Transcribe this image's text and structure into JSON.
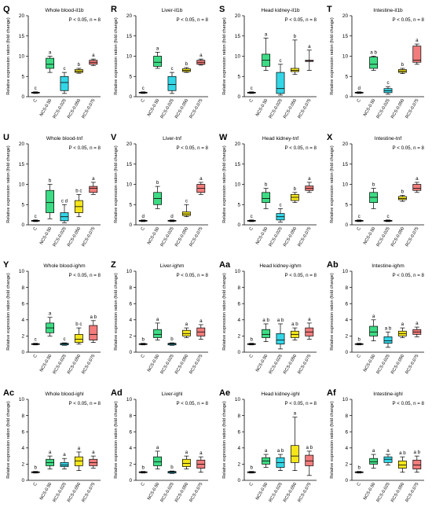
{
  "colors": {
    "C": "#ffffff",
    "NCS": "#3ddc84",
    "RCS25": "#33d6e6",
    "RCS50": "#f5e61c",
    "RCS75": "#f27c7c",
    "stroke": "#000000"
  },
  "common": {
    "ylabel": "Relative expression ration (fold change)",
    "stat": "P < 0.05, n = 8",
    "groups": [
      "C",
      "NCS-0.50",
      "RCS-0.025",
      "RCS-0.050",
      "RCS-0.075"
    ]
  },
  "chart_data": [
    {
      "type": "box",
      "panel": "Q",
      "title": "Whole blood-il1b",
      "ylim": [
        0,
        20
      ],
      "yticks": [
        0,
        5,
        10,
        15,
        20
      ],
      "boxes": [
        {
          "q1": 0.9,
          "q3": 1.1,
          "median": 1,
          "min": 0.8,
          "max": 1.2,
          "letter": "c"
        },
        {
          "q1": 7,
          "q3": 9.5,
          "median": 8,
          "min": 6,
          "max": 10,
          "letter": "a"
        },
        {
          "q1": 1.5,
          "q3": 5,
          "median": 3.5,
          "min": 0.8,
          "max": 6,
          "letter": "c"
        },
        {
          "q1": 6,
          "q3": 6.7,
          "median": 6.3,
          "min": 5.8,
          "max": 7,
          "letter": "b"
        },
        {
          "q1": 8,
          "q3": 9,
          "median": 8.5,
          "min": 7.7,
          "max": 9.3,
          "letter": "a"
        }
      ]
    },
    {
      "type": "box",
      "panel": "R",
      "title": "Liver-il1b",
      "ylim": [
        0,
        20
      ],
      "yticks": [
        0,
        5,
        10,
        15,
        20
      ],
      "boxes": [
        {
          "q1": 0.9,
          "q3": 1.1,
          "median": 1,
          "min": 0.8,
          "max": 1.2,
          "letter": "c"
        },
        {
          "q1": 7.5,
          "q3": 10,
          "median": 8.5,
          "min": 7,
          "max": 11,
          "letter": "a"
        },
        {
          "q1": 1.5,
          "q3": 5,
          "median": 3,
          "min": 0.8,
          "max": 6,
          "letter": "c"
        },
        {
          "q1": 6.2,
          "q3": 6.9,
          "median": 6.5,
          "min": 6,
          "max": 7.2,
          "letter": "b"
        },
        {
          "q1": 8,
          "q3": 9,
          "median": 8.5,
          "min": 7.8,
          "max": 9.3,
          "letter": "a"
        }
      ]
    },
    {
      "type": "box",
      "panel": "S",
      "title": "Head kidney-il1b",
      "ylim": [
        0,
        20
      ],
      "yticks": [
        0,
        5,
        10,
        15,
        20
      ],
      "boxes": [
        {
          "q1": 0.9,
          "q3": 1.1,
          "median": 1,
          "min": 0.8,
          "max": 1.2,
          "letter": "c"
        },
        {
          "q1": 7.5,
          "q3": 10.5,
          "median": 9,
          "min": 6.5,
          "max": 14.5,
          "letter": "a"
        },
        {
          "q1": 0.8,
          "q3": 6,
          "median": 2,
          "min": 0.4,
          "max": 8,
          "letter": "c"
        },
        {
          "q1": 6.2,
          "q3": 7,
          "median": 6.5,
          "min": 5.5,
          "max": 14,
          "letter": "b"
        },
        {
          "q1": 8.7,
          "q3": 9,
          "median": 8.8,
          "min": 6.5,
          "max": 11.5,
          "letter": "a"
        }
      ]
    },
    {
      "type": "box",
      "panel": "T",
      "title": "Intestine-il1b",
      "ylim": [
        0,
        20
      ],
      "yticks": [
        0,
        5,
        10,
        15,
        20
      ],
      "boxes": [
        {
          "q1": 0.9,
          "q3": 1.1,
          "median": 1,
          "min": 0.8,
          "max": 1.2,
          "letter": "d"
        },
        {
          "q1": 7,
          "q3": 9.8,
          "median": 8,
          "min": 6.5,
          "max": 10,
          "letter": "a b"
        },
        {
          "q1": 1,
          "q3": 2,
          "median": 1.5,
          "min": 0.6,
          "max": 2.5,
          "letter": "c"
        },
        {
          "q1": 6,
          "q3": 6.7,
          "median": 6.3,
          "min": 5.7,
          "max": 7,
          "letter": "b"
        },
        {
          "q1": 8.5,
          "q3": 12.5,
          "median": 9,
          "min": 8,
          "max": 13,
          "letter": "a"
        }
      ]
    },
    {
      "type": "box",
      "panel": "U",
      "title": "Whole blood-tnf",
      "ylim": [
        0,
        20
      ],
      "yticks": [
        0,
        5,
        10,
        15,
        20
      ],
      "boxes": [
        {
          "q1": 0.9,
          "q3": 1.1,
          "median": 1,
          "min": 0.8,
          "max": 1.2,
          "letter": "c"
        },
        {
          "q1": 3,
          "q3": 8.5,
          "median": 5.5,
          "min": 1.5,
          "max": 10,
          "letter": "b"
        },
        {
          "q1": 1,
          "q3": 3,
          "median": 2,
          "min": 0.5,
          "max": 5,
          "letter": "c d"
        },
        {
          "q1": 3,
          "q3": 6,
          "median": 4.5,
          "min": 2,
          "max": 7.5,
          "letter": "b c"
        },
        {
          "q1": 8,
          "q3": 9.5,
          "median": 9,
          "min": 7.5,
          "max": 10.5,
          "letter": "a"
        }
      ]
    },
    {
      "type": "box",
      "panel": "V",
      "title": "Liver-tnf",
      "ylim": [
        0,
        20
      ],
      "yticks": [
        0,
        5,
        10,
        15,
        20
      ],
      "boxes": [
        {
          "q1": 0.9,
          "q3": 1.1,
          "median": 1,
          "min": 0.8,
          "max": 1.2,
          "letter": "d"
        },
        {
          "q1": 5,
          "q3": 8,
          "median": 6.5,
          "min": 4,
          "max": 9.5,
          "letter": "b"
        },
        {
          "q1": 0.9,
          "q3": 1.1,
          "median": 1,
          "min": 0.8,
          "max": 1.2,
          "letter": "d"
        },
        {
          "q1": 2.3,
          "q3": 3.2,
          "median": 2.7,
          "min": 2,
          "max": 5,
          "letter": "c"
        },
        {
          "q1": 8,
          "q3": 10,
          "median": 9,
          "min": 7.5,
          "max": 10.5,
          "letter": "a"
        }
      ]
    },
    {
      "type": "box",
      "panel": "W",
      "title": "Head kidney-tnf",
      "ylim": [
        0,
        20
      ],
      "yticks": [
        0,
        5,
        10,
        15,
        20
      ],
      "boxes": [
        {
          "q1": 0.9,
          "q3": 1.1,
          "median": 1,
          "min": 0.8,
          "max": 1.2,
          "letter": "c"
        },
        {
          "q1": 5.5,
          "q3": 8,
          "median": 6.5,
          "min": 4,
          "max": 9,
          "letter": "b"
        },
        {
          "q1": 1.2,
          "q3": 2.8,
          "median": 2,
          "min": 0.7,
          "max": 4,
          "letter": "c"
        },
        {
          "q1": 6,
          "q3": 7.5,
          "median": 6.8,
          "min": 5.5,
          "max": 8,
          "letter": "b"
        },
        {
          "q1": 8.5,
          "q3": 9.6,
          "median": 9,
          "min": 8,
          "max": 10.5,
          "letter": "a"
        }
      ]
    },
    {
      "type": "box",
      "panel": "X",
      "title": "Intestine-tnf",
      "ylim": [
        0,
        20
      ],
      "yticks": [
        0,
        5,
        10,
        15,
        20
      ],
      "boxes": [
        {
          "q1": 0.9,
          "q3": 1.1,
          "median": 1,
          "min": 0.8,
          "max": 1.2,
          "letter": "c"
        },
        {
          "q1": 5.5,
          "q3": 8,
          "median": 6.8,
          "min": 4,
          "max": 9,
          "letter": "b"
        },
        {
          "q1": 0.9,
          "q3": 1.1,
          "median": 1,
          "min": 0.8,
          "max": 1.2,
          "letter": "c"
        },
        {
          "q1": 6.2,
          "q3": 7,
          "median": 6.5,
          "min": 5.8,
          "max": 7.3,
          "letter": "b"
        },
        {
          "q1": 8.5,
          "q3": 10,
          "median": 9,
          "min": 8,
          "max": 10.5,
          "letter": "a"
        }
      ]
    },
    {
      "type": "box",
      "panel": "Y",
      "title": "Whole blood-ighm",
      "ylim": [
        0,
        10
      ],
      "yticks": [
        0,
        2,
        4,
        6,
        8,
        10
      ],
      "boxes": [
        {
          "q1": 0.95,
          "q3": 1.05,
          "median": 1,
          "min": 0.9,
          "max": 1.1,
          "letter": "c"
        },
        {
          "q1": 2.4,
          "q3": 3.6,
          "median": 3,
          "min": 2,
          "max": 4.3,
          "letter": "a"
        },
        {
          "q1": 0.9,
          "q3": 1.1,
          "median": 1,
          "min": 0.85,
          "max": 1.15,
          "letter": "c"
        },
        {
          "q1": 1.2,
          "q3": 2.2,
          "median": 1.6,
          "min": 1,
          "max": 3,
          "letter": "b c"
        },
        {
          "q1": 1.5,
          "q3": 3.3,
          "median": 2.2,
          "min": 1.2,
          "max": 3.9,
          "letter": "a b"
        }
      ]
    },
    {
      "type": "box",
      "panel": "Z",
      "title": "Liver-ighm",
      "ylim": [
        0,
        10
      ],
      "yticks": [
        0,
        2,
        4,
        6,
        8,
        10
      ],
      "boxes": [
        {
          "q1": 0.95,
          "q3": 1.05,
          "median": 1,
          "min": 0.9,
          "max": 1.1,
          "letter": "b"
        },
        {
          "q1": 1.8,
          "q3": 2.8,
          "median": 2.2,
          "min": 1.5,
          "max": 3.6,
          "letter": "a"
        },
        {
          "q1": 0.9,
          "q3": 1.1,
          "median": 1,
          "min": 0.85,
          "max": 1.15,
          "letter": "b"
        },
        {
          "q1": 2,
          "q3": 2.7,
          "median": 2.3,
          "min": 1.8,
          "max": 3,
          "letter": "a"
        },
        {
          "q1": 2,
          "q3": 3,
          "median": 2.5,
          "min": 1.6,
          "max": 3.4,
          "letter": "a"
        }
      ]
    },
    {
      "type": "box",
      "panel": "Aa",
      "title": "Head kidney-ighm",
      "ylim": [
        0,
        10
      ],
      "yticks": [
        0,
        2,
        4,
        6,
        8,
        10
      ],
      "boxes": [
        {
          "q1": 0.95,
          "q3": 1.05,
          "median": 1,
          "min": 0.9,
          "max": 1.1,
          "letter": "b"
        },
        {
          "q1": 1.8,
          "q3": 2.8,
          "median": 2.2,
          "min": 1.3,
          "max": 3.5,
          "letter": "a b"
        },
        {
          "q1": 1,
          "q3": 2.3,
          "median": 1.5,
          "min": 0.4,
          "max": 3.5,
          "letter": "a b"
        },
        {
          "q1": 1.8,
          "q3": 2.6,
          "median": 2.2,
          "min": 1.5,
          "max": 3,
          "letter": "a b"
        },
        {
          "q1": 2,
          "q3": 3,
          "median": 2.5,
          "min": 1.6,
          "max": 3.6,
          "letter": "a"
        }
      ]
    },
    {
      "type": "box",
      "panel": "Ab",
      "title": "Intestine-ighm",
      "ylim": [
        0,
        10
      ],
      "yticks": [
        0,
        2,
        4,
        6,
        8,
        10
      ],
      "boxes": [
        {
          "q1": 0.95,
          "q3": 1.05,
          "median": 1,
          "min": 0.9,
          "max": 1.1,
          "letter": "b"
        },
        {
          "q1": 2,
          "q3": 3.2,
          "median": 2.5,
          "min": 1.4,
          "max": 4,
          "letter": "a"
        },
        {
          "q1": 1.1,
          "q3": 1.9,
          "median": 1.4,
          "min": 0.6,
          "max": 2.5,
          "letter": "a b"
        },
        {
          "q1": 2,
          "q3": 2.6,
          "median": 2.3,
          "min": 1.8,
          "max": 3,
          "letter": "a"
        },
        {
          "q1": 2.2,
          "q3": 2.8,
          "median": 2.5,
          "min": 1.9,
          "max": 3.1,
          "letter": "a"
        }
      ]
    },
    {
      "type": "box",
      "panel": "Ac",
      "title": "Whole blood-ighl",
      "ylim": [
        0,
        10
      ],
      "yticks": [
        0,
        2,
        4,
        6,
        8,
        10
      ],
      "boxes": [
        {
          "q1": 0.95,
          "q3": 1.05,
          "median": 1,
          "min": 0.9,
          "max": 1.1,
          "letter": "b"
        },
        {
          "q1": 1.8,
          "q3": 2.6,
          "median": 2.2,
          "min": 1.4,
          "max": 3,
          "letter": "a"
        },
        {
          "q1": 1.7,
          "q3": 2.2,
          "median": 1.9,
          "min": 1.4,
          "max": 2.7,
          "letter": "a"
        },
        {
          "q1": 1.8,
          "q3": 2.9,
          "median": 2.4,
          "min": 1.2,
          "max": 3.5,
          "letter": "a"
        },
        {
          "q1": 1.8,
          "q3": 2.6,
          "median": 2.2,
          "min": 1.5,
          "max": 3,
          "letter": "a"
        }
      ]
    },
    {
      "type": "box",
      "panel": "Ad",
      "title": "Liver-ighl",
      "ylim": [
        0,
        10
      ],
      "yticks": [
        0,
        2,
        4,
        6,
        8,
        10
      ],
      "boxes": [
        {
          "q1": 0.95,
          "q3": 1.05,
          "median": 1,
          "min": 0.9,
          "max": 1.1,
          "letter": "b"
        },
        {
          "q1": 1.8,
          "q3": 2.9,
          "median": 2.3,
          "min": 1.4,
          "max": 3.6,
          "letter": "a"
        },
        {
          "q1": 0.9,
          "q3": 1.1,
          "median": 1,
          "min": 0.85,
          "max": 1.15,
          "letter": "b"
        },
        {
          "q1": 1.7,
          "q3": 2.6,
          "median": 2.1,
          "min": 1.4,
          "max": 3,
          "letter": "a"
        },
        {
          "q1": 1.5,
          "q3": 2.5,
          "median": 2,
          "min": 1,
          "max": 2.9,
          "letter": "a"
        }
      ]
    },
    {
      "type": "box",
      "panel": "Ae",
      "title": "Head kidney-ighl",
      "ylim": [
        0,
        10
      ],
      "yticks": [
        0,
        2,
        4,
        6,
        8,
        10
      ],
      "boxes": [
        {
          "q1": 0.95,
          "q3": 1.05,
          "median": 1,
          "min": 0.9,
          "max": 1.1,
          "letter": "b"
        },
        {
          "q1": 2,
          "q3": 2.8,
          "median": 2.4,
          "min": 1.6,
          "max": 3.2,
          "letter": "a"
        },
        {
          "q1": 1.6,
          "q3": 2.8,
          "median": 2.2,
          "min": 1.2,
          "max": 3.2,
          "letter": "a b"
        },
        {
          "q1": 2.2,
          "q3": 4.3,
          "median": 3,
          "min": 1.2,
          "max": 7.8,
          "letter": "a"
        },
        {
          "q1": 1.8,
          "q3": 3.1,
          "median": 2.4,
          "min": 0.6,
          "max": 3.6,
          "letter": "a b"
        }
      ]
    },
    {
      "type": "box",
      "panel": "Af",
      "title": "Intestine-ighl",
      "ylim": [
        0,
        10
      ],
      "yticks": [
        0,
        2,
        4,
        6,
        8,
        10
      ],
      "boxes": [
        {
          "q1": 0.95,
          "q3": 1.05,
          "median": 1,
          "min": 0.9,
          "max": 1.1,
          "letter": "b"
        },
        {
          "q1": 2,
          "q3": 2.7,
          "median": 2.3,
          "min": 1.5,
          "max": 3.2,
          "letter": "a"
        },
        {
          "q1": 2.2,
          "q3": 2.9,
          "median": 2.6,
          "min": 1.9,
          "max": 3.2,
          "letter": "a"
        },
        {
          "q1": 1.5,
          "q3": 2.4,
          "median": 1.9,
          "min": 1,
          "max": 2.9,
          "letter": "a b"
        },
        {
          "q1": 1.4,
          "q3": 2.5,
          "median": 1.9,
          "min": 1,
          "max": 3,
          "letter": "a b"
        }
      ]
    }
  ]
}
